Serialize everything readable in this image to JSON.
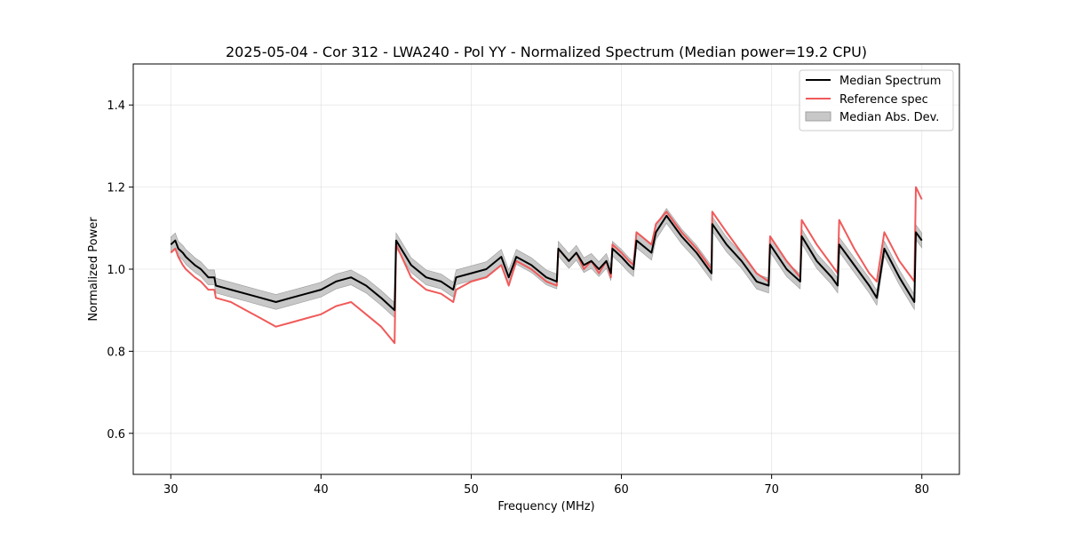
{
  "chart_data": {
    "type": "line",
    "title": "2025-05-04 - Cor 312 - LWA240 - Pol YY - Normalized Spectrum (Median power=19.2 CPU)",
    "xlabel": "Frequency (MHz)",
    "ylabel": "Normalized Power",
    "xlim": [
      27.5,
      82.5
    ],
    "ylim": [
      0.5,
      1.5
    ],
    "xticks": [
      30,
      40,
      50,
      60,
      70,
      80
    ],
    "yticks": [
      0.6,
      0.8,
      1.0,
      1.2,
      1.4
    ],
    "grid": true,
    "legend_position": "upper-right",
    "legend": [
      {
        "label": "Median Spectrum",
        "kind": "line",
        "color": "#000000"
      },
      {
        "label": "Reference spec",
        "kind": "line",
        "color": "#f05a5a"
      },
      {
        "label": "Median Abs. Dev.",
        "kind": "band",
        "color": "#c8c8c8"
      }
    ],
    "series": [
      {
        "name": "Median Spectrum",
        "color": "#000000",
        "x": [
          30.0,
          30.3,
          30.5,
          30.8,
          31.0,
          31.3,
          31.6,
          32.0,
          32.5,
          32.9,
          33.0,
          34.0,
          35.0,
          36.0,
          37.0,
          38.0,
          39.0,
          40.0,
          41.0,
          42.0,
          43.0,
          44.0,
          44.9,
          45.0,
          46.0,
          47.0,
          48.0,
          48.8,
          49.0,
          50.0,
          51.0,
          52.0,
          52.5,
          53.0,
          54.0,
          55.0,
          55.7,
          55.8,
          56.5,
          57.0,
          57.5,
          58.0,
          58.5,
          59.0,
          59.3,
          59.4,
          60.0,
          60.5,
          60.8,
          61.0,
          62.0,
          62.3,
          63.0,
          64.0,
          65.0,
          66.0,
          66.05,
          67.0,
          68.0,
          69.0,
          69.8,
          69.9,
          71.0,
          71.9,
          72.0,
          73.0,
          74.0,
          74.4,
          74.5,
          75.5,
          76.5,
          77.0,
          77.5,
          78.5,
          79.5,
          79.6,
          80.0
        ],
        "values": [
          1.06,
          1.07,
          1.05,
          1.04,
          1.03,
          1.02,
          1.01,
          1.0,
          0.98,
          0.98,
          0.96,
          0.95,
          0.94,
          0.93,
          0.92,
          0.93,
          0.94,
          0.95,
          0.97,
          0.98,
          0.96,
          0.93,
          0.9,
          1.07,
          1.01,
          0.98,
          0.97,
          0.95,
          0.98,
          0.99,
          1.0,
          1.03,
          0.98,
          1.03,
          1.01,
          0.98,
          0.97,
          1.05,
          1.02,
          1.04,
          1.01,
          1.02,
          1.0,
          1.02,
          0.99,
          1.05,
          1.03,
          1.01,
          1.0,
          1.07,
          1.04,
          1.09,
          1.13,
          1.08,
          1.04,
          0.99,
          1.11,
          1.06,
          1.02,
          0.97,
          0.96,
          1.06,
          1.0,
          0.97,
          1.08,
          1.02,
          0.98,
          0.96,
          1.06,
          1.01,
          0.96,
          0.93,
          1.05,
          0.98,
          0.92,
          1.09,
          1.07
        ]
      },
      {
        "name": "Reference spec",
        "color": "#f05a5a",
        "x": [
          30.0,
          30.3,
          30.5,
          30.8,
          31.0,
          31.3,
          31.6,
          32.0,
          32.5,
          32.9,
          33.0,
          34.0,
          35.0,
          36.0,
          37.0,
          38.0,
          39.0,
          40.0,
          41.0,
          42.0,
          43.0,
          44.0,
          44.9,
          45.0,
          46.0,
          47.0,
          48.0,
          48.8,
          49.0,
          50.0,
          51.0,
          52.0,
          52.5,
          53.0,
          54.0,
          55.0,
          55.7,
          55.8,
          56.5,
          57.0,
          57.5,
          58.0,
          58.5,
          59.0,
          59.3,
          59.4,
          60.0,
          60.5,
          60.8,
          61.0,
          62.0,
          62.3,
          63.0,
          64.0,
          65.0,
          66.0,
          66.05,
          67.0,
          68.0,
          69.0,
          69.8,
          69.9,
          71.0,
          71.9,
          72.0,
          73.0,
          74.0,
          74.4,
          74.5,
          75.5,
          76.5,
          77.0,
          77.5,
          78.5,
          79.5,
          79.6,
          80.0
        ],
        "values": [
          1.04,
          1.05,
          1.03,
          1.01,
          1.0,
          0.99,
          0.98,
          0.97,
          0.95,
          0.95,
          0.93,
          0.92,
          0.9,
          0.88,
          0.86,
          0.87,
          0.88,
          0.89,
          0.91,
          0.92,
          0.89,
          0.86,
          0.82,
          1.06,
          0.98,
          0.95,
          0.94,
          0.92,
          0.95,
          0.97,
          0.98,
          1.01,
          0.96,
          1.02,
          1.0,
          0.97,
          0.96,
          1.05,
          1.02,
          1.04,
          1.0,
          1.02,
          0.99,
          1.02,
          0.98,
          1.06,
          1.04,
          1.02,
          1.01,
          1.09,
          1.06,
          1.11,
          1.14,
          1.09,
          1.05,
          1.0,
          1.14,
          1.09,
          1.04,
          0.99,
          0.97,
          1.08,
          1.02,
          0.98,
          1.12,
          1.06,
          1.01,
          0.99,
          1.12,
          1.05,
          0.99,
          0.97,
          1.09,
          1.02,
          0.97,
          1.2,
          1.17
        ]
      }
    ],
    "band": {
      "name": "Median Abs. Dev.",
      "color": "#c8c8c8",
      "halfwidth": 0.018
    }
  }
}
